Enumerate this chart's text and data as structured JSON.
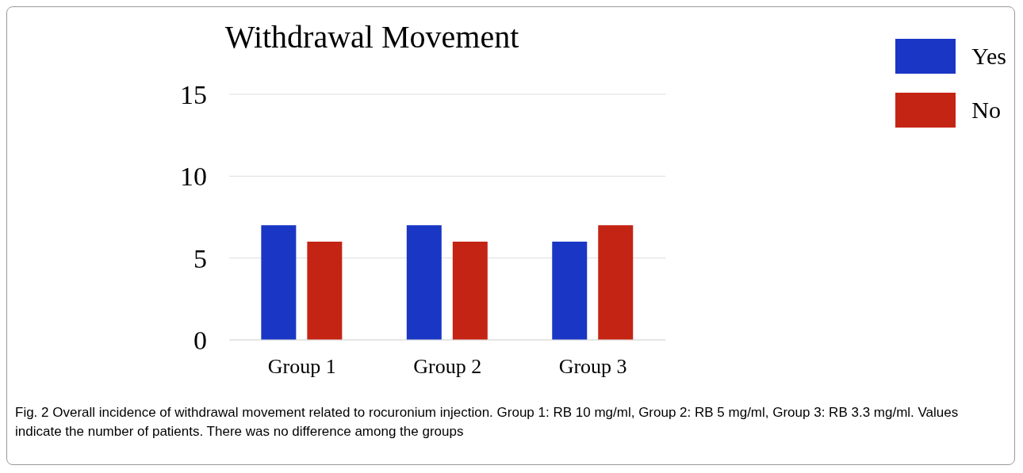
{
  "chart_data": {
    "type": "bar",
    "title": "Withdrawal Movement",
    "categories": [
      "Group 1",
      "Group 2",
      "Group 3"
    ],
    "series": [
      {
        "name": "Yes",
        "color": "#1a36c4",
        "values": [
          7,
          7,
          6
        ]
      },
      {
        "name": "No",
        "color": "#c42414",
        "values": [
          6,
          6,
          7
        ]
      }
    ],
    "ylim": [
      0,
      15
    ],
    "yticks": [
      0,
      5,
      10,
      15
    ],
    "grid": "y",
    "legend": "top right",
    "annotations": [
      "Fig. 2 Overall incidence of withdrawal movement related to rocuronium injection. Group 1: RB 10 mg/ml, Group 2: RB 5 mg/ml, Group 3: RB 3.3 mg/ml. Values indicate the number of patients. There was no difference among the groups"
    ]
  }
}
